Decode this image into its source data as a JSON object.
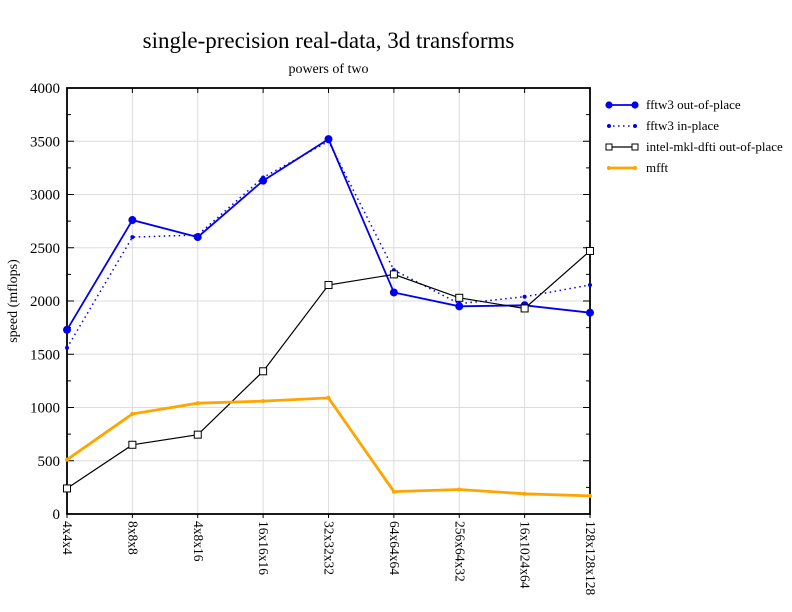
{
  "chart_data": {
    "type": "line",
    "title": "single-precision real-data, 3d transforms",
    "subtitle": "powers of two",
    "ylabel": "speed (mflops)",
    "xlabel": "",
    "categories": [
      "4x4x4",
      "8x8x8",
      "4x8x16",
      "16x16x16",
      "32x32x32",
      "64x64x64",
      "256x64x32",
      "16x1024x64",
      "128x128x128"
    ],
    "ylim": [
      0,
      4000
    ],
    "ytick_step": 500,
    "ytick_minor_step": 250,
    "ytick_labels": [
      "0",
      "500",
      "1000",
      "1500",
      "2000",
      "2500",
      "3000",
      "3500",
      "4000"
    ],
    "grid": true,
    "legend_position": "top-right-outside",
    "series": [
      {
        "name": "fftw3 out-of-place",
        "color": "#0000ee",
        "line": "solid",
        "line_width": 1.8,
        "marker": "filled-circle",
        "values": [
          1730,
          2760,
          2600,
          3130,
          3520,
          2080,
          1950,
          1960,
          1890
        ]
      },
      {
        "name": "fftw3 in-place",
        "color": "#0000ee",
        "line": "dotted",
        "line_width": 1.5,
        "marker": "filled-dot",
        "values": [
          1560,
          2600,
          2620,
          3160,
          3500,
          2290,
          1975,
          2040,
          2150
        ]
      },
      {
        "name": "intel-mkl-dfti out-of-place",
        "color": "#000000",
        "line": "solid",
        "line_width": 1.2,
        "marker": "open-square",
        "values": [
          240,
          650,
          745,
          1340,
          2150,
          2250,
          2030,
          1930,
          2470
        ]
      },
      {
        "name": "mfft",
        "color": "#ffa500",
        "line": "solid",
        "line_width": 2.8,
        "marker": "filled-dot",
        "values": [
          510,
          940,
          1040,
          1060,
          1090,
          210,
          230,
          190,
          170
        ]
      }
    ],
    "colors": {
      "background": "#ffffff",
      "border": "#000000",
      "grid": "#dcdcdc",
      "blue": "#0000ee",
      "orange": "#ffa500",
      "black": "#000000"
    }
  }
}
